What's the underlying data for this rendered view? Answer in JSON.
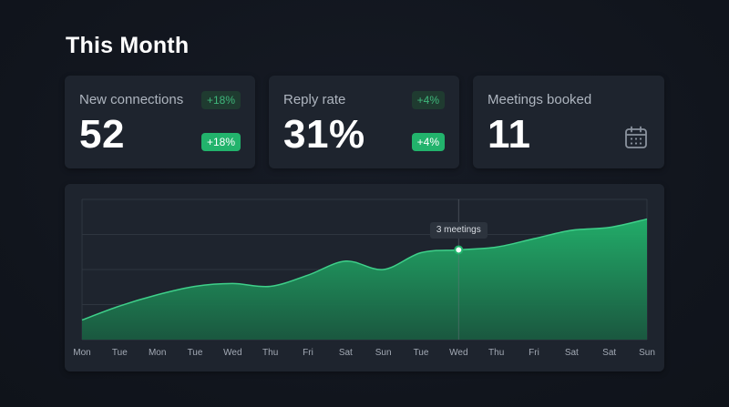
{
  "header": {
    "title": "This Month"
  },
  "stats": [
    {
      "label": "New connections",
      "value": "52",
      "badge_top": "+18%",
      "badge_bottom": "+18%"
    },
    {
      "label": "Reply rate",
      "value": "31%",
      "badge_top": "+4%",
      "badge_bottom": "+4%"
    },
    {
      "label": "Meetings booked",
      "value": "11",
      "icon": "calendar-icon"
    }
  ],
  "colors": {
    "accent": "#22b36c",
    "card": "#1e242e",
    "background": "#12161f"
  },
  "chart_data": {
    "type": "area",
    "categories": [
      "Mon",
      "Tue",
      "Mon",
      "Tue",
      "Wed",
      "Thu",
      "Fri",
      "Sat",
      "Sun",
      "Tue",
      "Wed",
      "Thu",
      "Fri",
      "Sat",
      "Sat",
      "Sun"
    ],
    "series": [
      {
        "values": [
          0.7,
          1.2,
          1.6,
          1.9,
          2.0,
          1.9,
          2.3,
          2.8,
          2.5,
          3.1,
          3.2,
          3.3,
          3.6,
          3.9,
          4.0,
          4.3
        ]
      }
    ],
    "ylim": [
      0,
      5
    ],
    "grid": true,
    "highlight": {
      "index": 10,
      "label": "3 meetings"
    }
  }
}
